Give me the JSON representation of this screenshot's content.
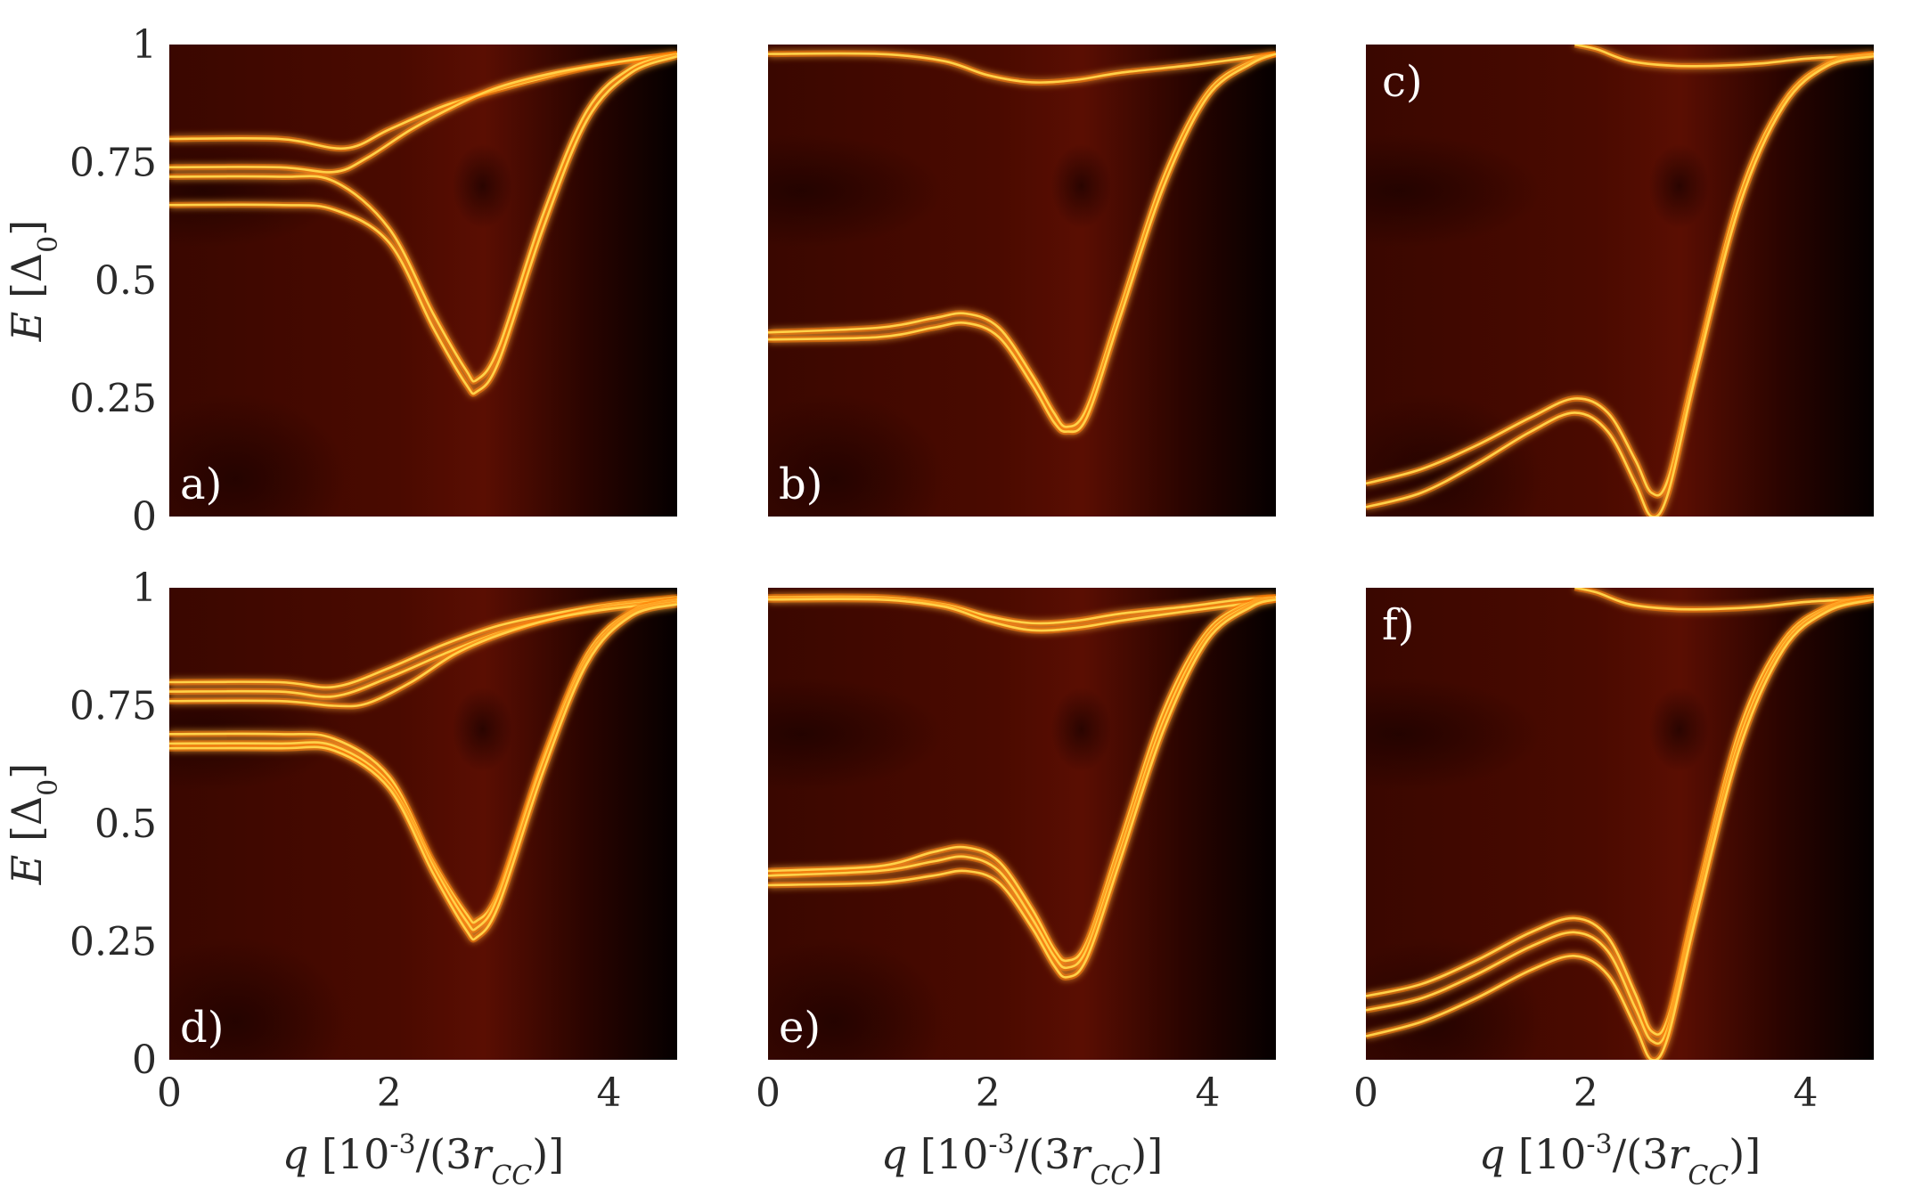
{
  "chart_data": [
    {
      "type": "heatmap",
      "panel_label": "a)",
      "xlim": [
        0,
        4.62
      ],
      "ylim": [
        0,
        1
      ],
      "xticks": [
        "0",
        "2",
        "4"
      ],
      "yticks": [
        "0",
        "0.25",
        "0.5",
        "0.75",
        "1"
      ],
      "xlabel": "",
      "ylabel": "E [Δ0]",
      "series": [
        {
          "x": [
            0,
            1,
            1.6,
            2,
            2.5,
            3,
            3.5,
            4,
            4.62
          ],
          "y": [
            0.8,
            0.8,
            0.78,
            0.82,
            0.87,
            0.905,
            0.935,
            0.96,
            0.98
          ]
        },
        {
          "x": [
            0,
            1,
            1.5,
            1.8,
            2.2,
            2.6,
            3,
            3.5,
            4,
            4.62
          ],
          "y": [
            0.74,
            0.74,
            0.73,
            0.76,
            0.82,
            0.87,
            0.91,
            0.94,
            0.96,
            0.98
          ]
        },
        {
          "x": [
            0,
            1,
            1.5,
            2,
            2.4,
            2.7,
            2.8,
            3,
            3.4,
            3.8,
            4.2,
            4.62
          ],
          "y": [
            0.72,
            0.72,
            0.71,
            0.61,
            0.43,
            0.31,
            0.29,
            0.36,
            0.64,
            0.86,
            0.95,
            0.98
          ]
        },
        {
          "x": [
            0,
            1,
            1.5,
            2,
            2.4,
            2.7,
            2.8,
            3,
            3.4,
            3.8,
            4.2,
            4.62
          ],
          "y": [
            0.66,
            0.66,
            0.65,
            0.58,
            0.4,
            0.28,
            0.265,
            0.33,
            0.61,
            0.84,
            0.94,
            0.975
          ]
        }
      ]
    },
    {
      "type": "heatmap",
      "panel_label": "b)",
      "xlim": [
        0,
        4.62
      ],
      "ylim": [
        0,
        1
      ],
      "xticks": [
        "0",
        "2",
        "4"
      ],
      "yticks": [],
      "xlabel": "",
      "ylabel": "",
      "series": [
        {
          "x": [
            0,
            1,
            1.6,
            2.0,
            2.4,
            2.8,
            3.2,
            3.8,
            4.3,
            4.62
          ],
          "y": [
            0.98,
            0.98,
            0.965,
            0.935,
            0.92,
            0.925,
            0.94,
            0.955,
            0.97,
            0.98
          ]
        },
        {
          "x": [
            0,
            1,
            1.5,
            1.8,
            2.1,
            2.4,
            2.6,
            2.72,
            2.9,
            3.2,
            3.6,
            4.0,
            4.4,
            4.62
          ],
          "y": [
            0.39,
            0.4,
            0.42,
            0.43,
            0.4,
            0.3,
            0.22,
            0.19,
            0.23,
            0.44,
            0.72,
            0.9,
            0.965,
            0.98
          ]
        },
        {
          "x": [
            0,
            1,
            1.5,
            1.8,
            2.1,
            2.4,
            2.6,
            2.72,
            2.9,
            3.2,
            3.6,
            4.0,
            4.4,
            4.62
          ],
          "y": [
            0.375,
            0.38,
            0.4,
            0.41,
            0.38,
            0.28,
            0.2,
            0.18,
            0.21,
            0.42,
            0.7,
            0.89,
            0.96,
            0.98
          ]
        }
      ]
    },
    {
      "type": "heatmap",
      "panel_label": "c)",
      "xlim": [
        0,
        4.62
      ],
      "ylim": [
        0,
        1
      ],
      "xticks": [
        "0",
        "2",
        "4"
      ],
      "yticks": [],
      "xlabel": "",
      "ylabel": "",
      "series": [
        {
          "x": [
            1.9,
            2.1,
            2.4,
            2.8,
            3.2,
            3.6,
            4.0,
            4.4,
            4.62
          ],
          "y": [
            1.0,
            0.99,
            0.965,
            0.955,
            0.955,
            0.96,
            0.97,
            0.975,
            0.98
          ]
        },
        {
          "x": [
            0,
            0.5,
            1.0,
            1.5,
            1.9,
            2.2,
            2.45,
            2.6,
            2.75,
            3.0,
            3.4,
            3.8,
            4.2,
            4.62
          ],
          "y": [
            0.07,
            0.1,
            0.15,
            0.21,
            0.25,
            0.22,
            0.12,
            0.05,
            0.08,
            0.32,
            0.68,
            0.88,
            0.96,
            0.98
          ]
        },
        {
          "x": [
            0,
            0.5,
            1.0,
            1.5,
            1.9,
            2.2,
            2.45,
            2.6,
            2.75,
            3.0,
            3.4,
            3.8,
            4.2,
            4.62
          ],
          "y": [
            0.02,
            0.05,
            0.11,
            0.18,
            0.22,
            0.18,
            0.07,
            0.0,
            0.05,
            0.3,
            0.66,
            0.87,
            0.955,
            0.975
          ]
        }
      ]
    },
    {
      "type": "heatmap",
      "panel_label": "d)",
      "xlim": [
        0,
        4.62
      ],
      "ylim": [
        0,
        1
      ],
      "xticks": [
        "0",
        "2",
        "4"
      ],
      "yticks": [
        "0",
        "0.25",
        "0.5",
        "0.75",
        "1"
      ],
      "xlabel": "q [10^-3/(3rCC)]",
      "ylabel": "E [Δ0]",
      "series": [
        {
          "x": [
            0,
            1,
            1.5,
            2,
            2.5,
            3,
            3.5,
            4,
            4.62
          ],
          "y": [
            0.8,
            0.8,
            0.79,
            0.83,
            0.88,
            0.92,
            0.945,
            0.965,
            0.98
          ]
        },
        {
          "x": [
            0,
            1,
            1.5,
            2,
            2.5,
            3,
            3.5,
            4,
            4.62
          ],
          "y": [
            0.78,
            0.78,
            0.77,
            0.81,
            0.86,
            0.905,
            0.935,
            0.96,
            0.975
          ]
        },
        {
          "x": [
            0,
            1,
            1.5,
            1.8,
            2.2,
            2.6,
            3,
            3.5,
            4,
            4.62
          ],
          "y": [
            0.76,
            0.76,
            0.75,
            0.755,
            0.8,
            0.86,
            0.9,
            0.935,
            0.955,
            0.97
          ]
        },
        {
          "x": [
            0,
            1,
            1.5,
            2,
            2.4,
            2.7,
            2.8,
            3,
            3.4,
            3.8,
            4.2,
            4.62
          ],
          "y": [
            0.69,
            0.69,
            0.68,
            0.6,
            0.42,
            0.31,
            0.295,
            0.36,
            0.64,
            0.86,
            0.95,
            0.975
          ]
        },
        {
          "x": [
            0,
            1,
            1.5,
            2,
            2.4,
            2.7,
            2.8,
            3,
            3.4,
            3.8,
            4.2,
            4.62
          ],
          "y": [
            0.67,
            0.67,
            0.665,
            0.585,
            0.41,
            0.295,
            0.28,
            0.35,
            0.63,
            0.85,
            0.945,
            0.97
          ]
        },
        {
          "x": [
            0,
            1,
            1.5,
            2,
            2.4,
            2.7,
            2.8,
            3,
            3.4,
            3.8,
            4.2,
            4.62
          ],
          "y": [
            0.66,
            0.66,
            0.655,
            0.575,
            0.395,
            0.275,
            0.26,
            0.33,
            0.61,
            0.84,
            0.94,
            0.965
          ]
        }
      ]
    },
    {
      "type": "heatmap",
      "panel_label": "e)",
      "xlim": [
        0,
        4.62
      ],
      "ylim": [
        0,
        1
      ],
      "xticks": [
        "0",
        "2",
        "4"
      ],
      "yticks": [],
      "xlabel": "q [10^-3/(3rCC)]",
      "ylabel": "",
      "series": [
        {
          "x": [
            0,
            1,
            1.6,
            2.0,
            2.4,
            2.8,
            3.2,
            3.8,
            4.3,
            4.62
          ],
          "y": [
            0.98,
            0.98,
            0.965,
            0.94,
            0.925,
            0.93,
            0.945,
            0.96,
            0.975,
            0.98
          ]
        },
        {
          "x": [
            0,
            1,
            1.6,
            2.0,
            2.4,
            2.8,
            3.2,
            3.8,
            4.3,
            4.62
          ],
          "y": [
            0.975,
            0.975,
            0.96,
            0.93,
            0.91,
            0.915,
            0.93,
            0.95,
            0.965,
            0.975
          ]
        },
        {
          "x": [
            0,
            1,
            1.5,
            1.8,
            2.1,
            2.4,
            2.6,
            2.72,
            2.9,
            3.2,
            3.6,
            4.0,
            4.4,
            4.62
          ],
          "y": [
            0.4,
            0.41,
            0.44,
            0.45,
            0.42,
            0.32,
            0.235,
            0.21,
            0.25,
            0.46,
            0.74,
            0.91,
            0.97,
            0.98
          ]
        },
        {
          "x": [
            0,
            1,
            1.5,
            1.8,
            2.1,
            2.4,
            2.6,
            2.72,
            2.9,
            3.2,
            3.6,
            4.0,
            4.4,
            4.62
          ],
          "y": [
            0.39,
            0.4,
            0.42,
            0.43,
            0.4,
            0.3,
            0.22,
            0.195,
            0.235,
            0.44,
            0.72,
            0.9,
            0.965,
            0.98
          ]
        },
        {
          "x": [
            0,
            1,
            1.5,
            1.8,
            2.1,
            2.4,
            2.6,
            2.72,
            2.9,
            3.2,
            3.6,
            4.0,
            4.4,
            4.62
          ],
          "y": [
            0.37,
            0.375,
            0.39,
            0.4,
            0.375,
            0.28,
            0.2,
            0.175,
            0.215,
            0.42,
            0.7,
            0.89,
            0.96,
            0.975
          ]
        }
      ]
    },
    {
      "type": "heatmap",
      "panel_label": "f)",
      "xlim": [
        0,
        4.62
      ],
      "ylim": [
        0,
        1
      ],
      "xticks": [
        "0",
        "2",
        "4"
      ],
      "yticks": [],
      "xlabel": "q [10^-3/(3rCC)]",
      "ylabel": "",
      "series": [
        {
          "x": [
            1.9,
            2.1,
            2.4,
            2.8,
            3.2,
            3.6,
            4.0,
            4.4,
            4.62
          ],
          "y": [
            1.0,
            0.99,
            0.965,
            0.955,
            0.955,
            0.96,
            0.97,
            0.975,
            0.98
          ]
        },
        {
          "x": [
            0,
            0.5,
            1.0,
            1.5,
            1.9,
            2.2,
            2.45,
            2.6,
            2.75,
            3.0,
            3.4,
            3.8,
            4.2,
            4.62
          ],
          "y": [
            0.135,
            0.16,
            0.21,
            0.27,
            0.3,
            0.26,
            0.14,
            0.06,
            0.09,
            0.34,
            0.7,
            0.89,
            0.96,
            0.98
          ]
        },
        {
          "x": [
            0,
            0.5,
            1.0,
            1.5,
            1.9,
            2.2,
            2.45,
            2.6,
            2.75,
            3.0,
            3.4,
            3.8,
            4.2,
            4.62
          ],
          "y": [
            0.105,
            0.13,
            0.18,
            0.24,
            0.27,
            0.23,
            0.11,
            0.04,
            0.07,
            0.32,
            0.68,
            0.88,
            0.955,
            0.975
          ]
        },
        {
          "x": [
            0,
            0.5,
            1.0,
            1.5,
            1.9,
            2.2,
            2.45,
            2.6,
            2.75,
            3.0,
            3.4,
            3.8,
            4.2,
            4.62
          ],
          "y": [
            0.05,
            0.08,
            0.13,
            0.19,
            0.22,
            0.18,
            0.07,
            0.0,
            0.05,
            0.3,
            0.66,
            0.87,
            0.95,
            0.975
          ]
        }
      ]
    }
  ]
}
